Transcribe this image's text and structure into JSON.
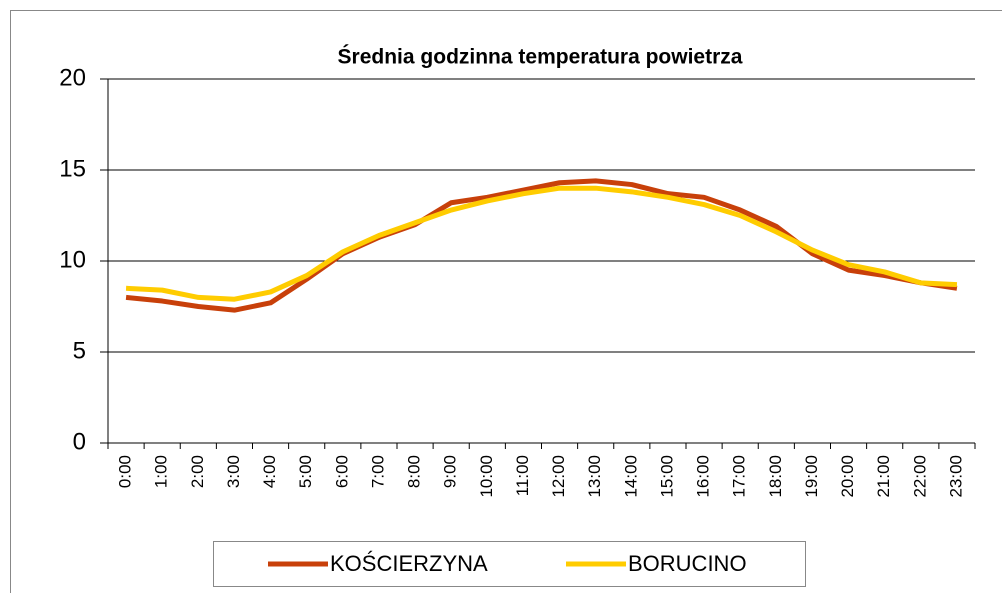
{
  "chart_data": {
    "type": "line",
    "title": "Średnia godzinna temperatura powietrza",
    "categories": [
      "0:00",
      "1:00",
      "2:00",
      "3:00",
      "4:00",
      "5:00",
      "6:00",
      "7:00",
      "8:00",
      "9:00",
      "10:00",
      "11:00",
      "12:00",
      "13:00",
      "14:00",
      "15:00",
      "16:00",
      "17:00",
      "18:00",
      "19:00",
      "20:00",
      "21:00",
      "22:00",
      "23:00"
    ],
    "series": [
      {
        "name": "KOŚCIERZYNA",
        "color": "#c8400a",
        "values": [
          8.0,
          7.8,
          7.5,
          7.3,
          7.7,
          9.0,
          10.4,
          11.3,
          12.0,
          13.2,
          13.5,
          13.9,
          14.3,
          14.4,
          14.2,
          13.7,
          13.5,
          12.8,
          11.9,
          10.4,
          9.5,
          9.2,
          8.8,
          8.5
        ]
      },
      {
        "name": "BORUCINO",
        "color": "#ffcc00",
        "values": [
          8.5,
          8.4,
          8.0,
          7.9,
          8.3,
          9.2,
          10.5,
          11.4,
          12.1,
          12.8,
          13.3,
          13.7,
          14.0,
          14.0,
          13.8,
          13.5,
          13.1,
          12.5,
          11.6,
          10.6,
          9.8,
          9.4,
          8.8,
          8.7
        ]
      }
    ],
    "ylim": [
      0,
      20
    ],
    "yticks": [
      0,
      5,
      10,
      15,
      20
    ],
    "grid": true,
    "legend": "bottom"
  }
}
